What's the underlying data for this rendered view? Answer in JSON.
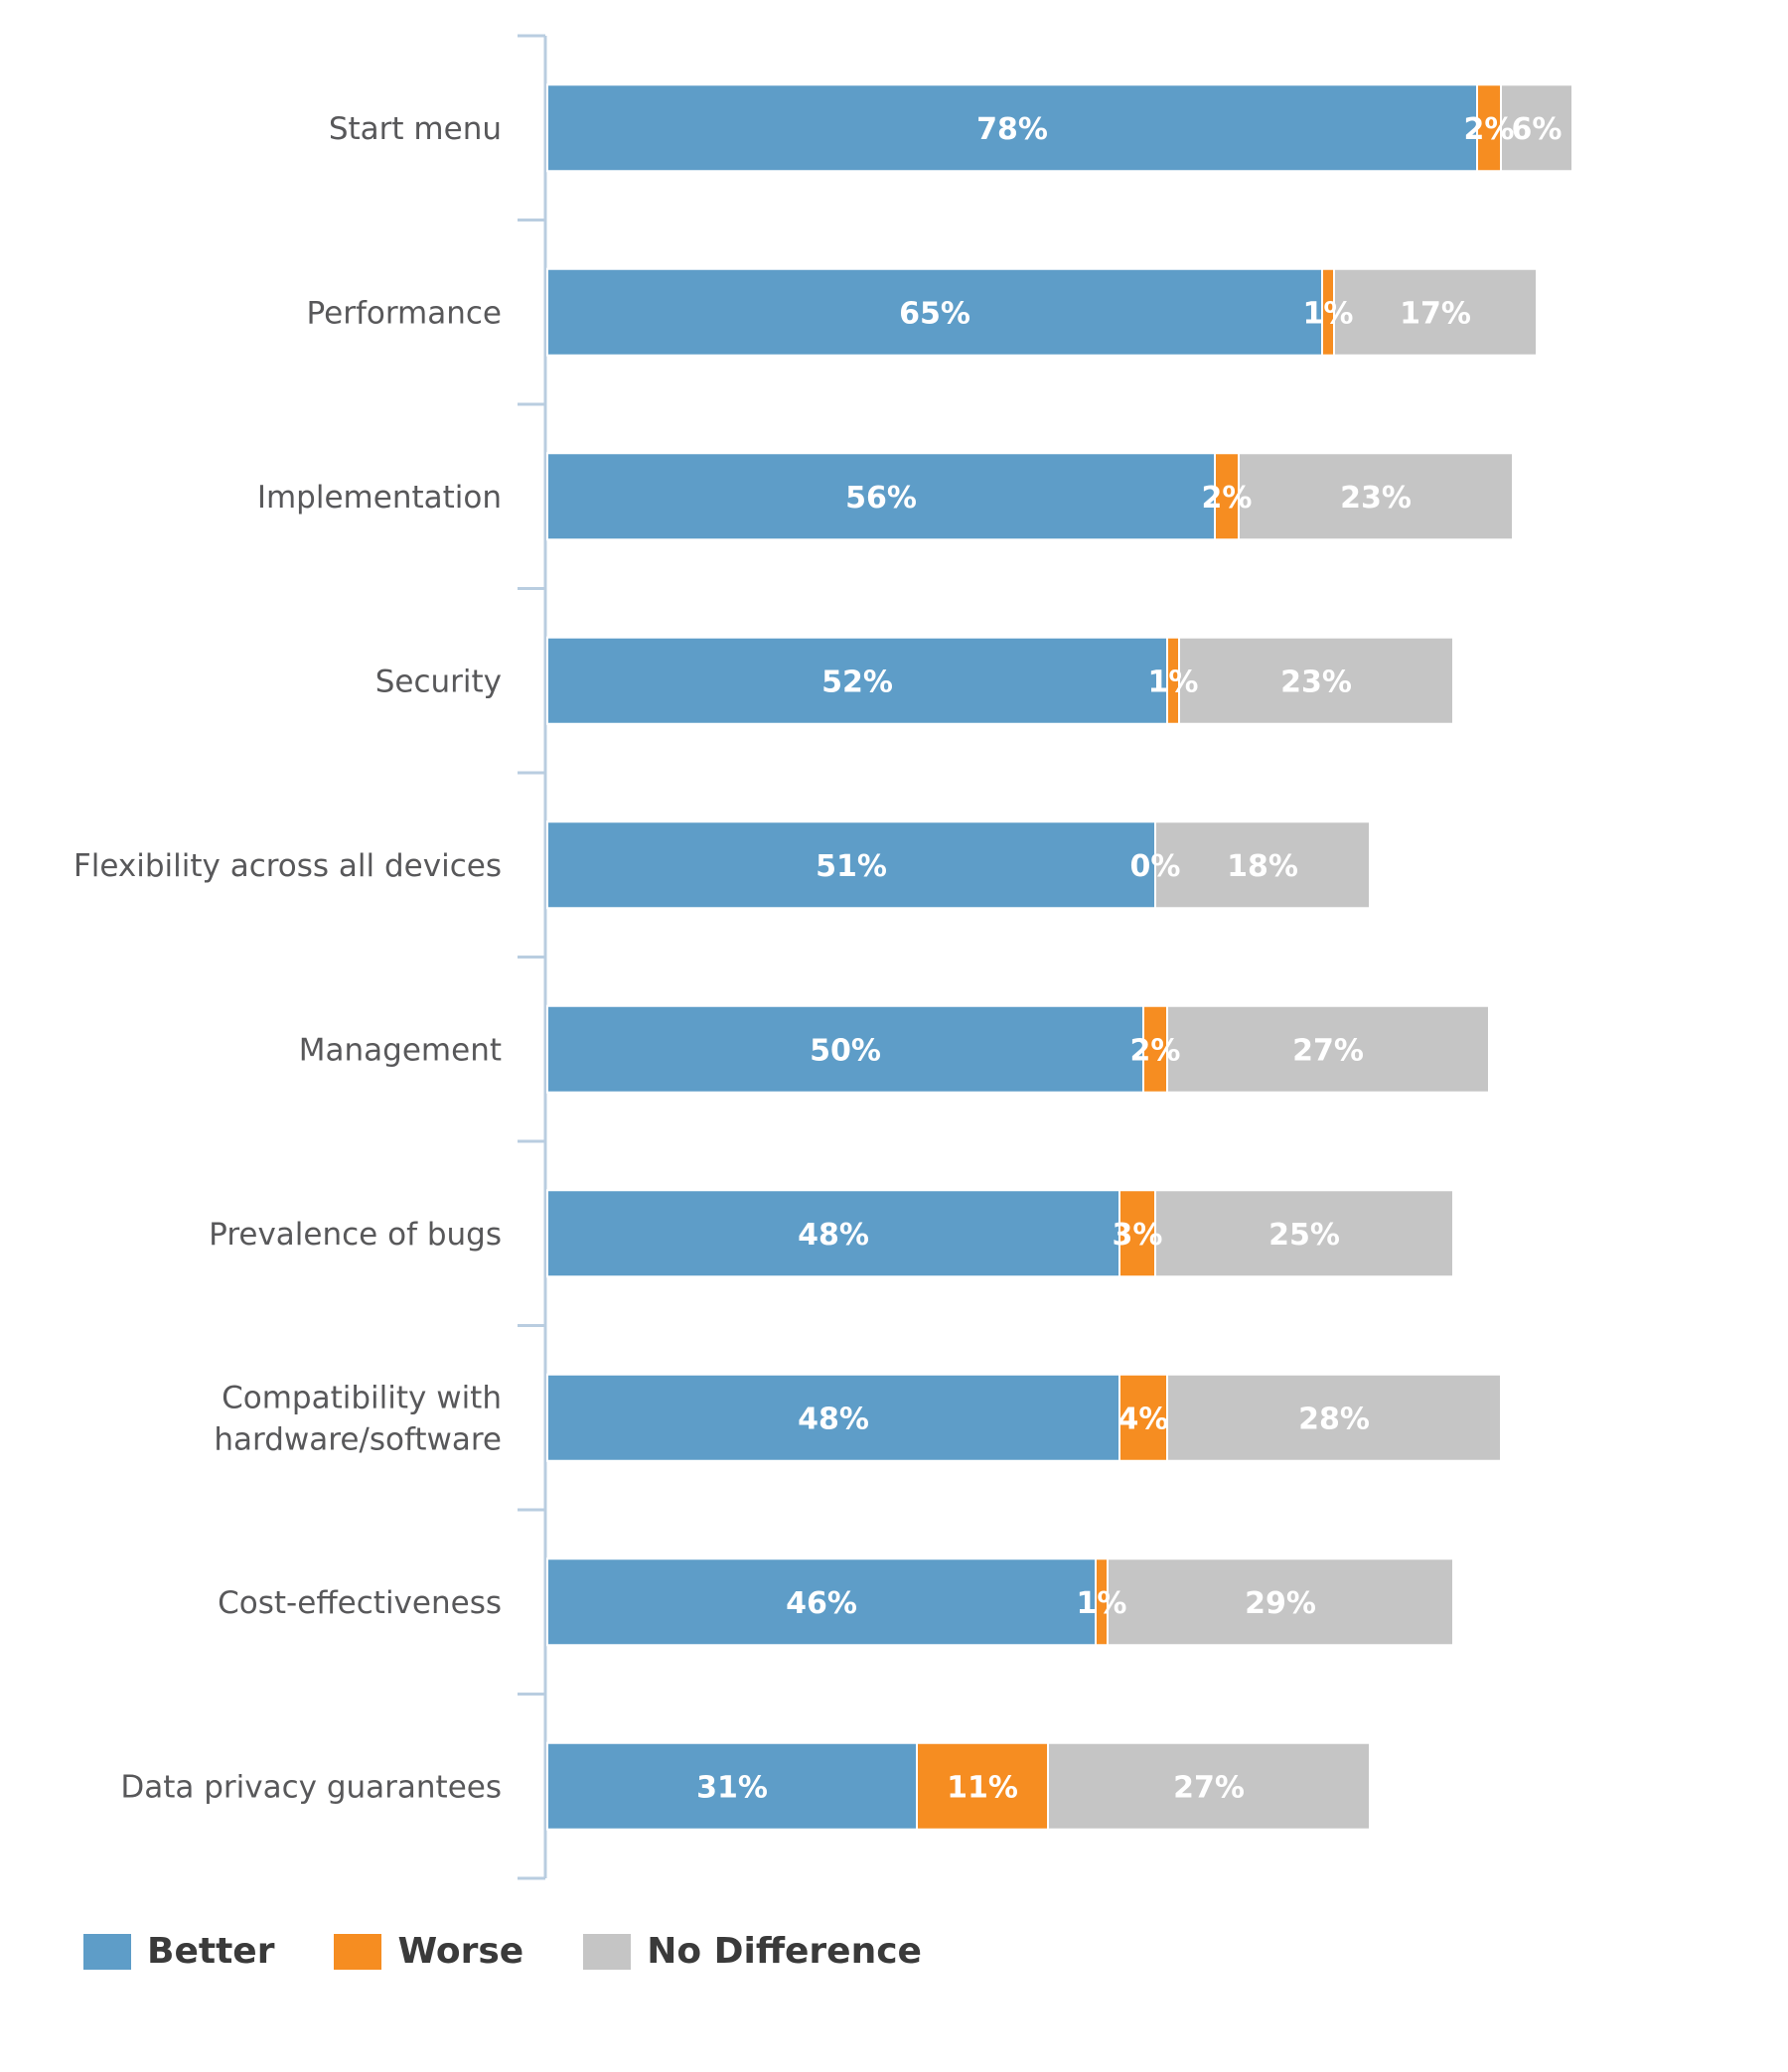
{
  "chart_data": {
    "type": "bar",
    "orientation": "horizontal",
    "stacked": true,
    "title": "",
    "xlabel": "",
    "ylabel": "",
    "xlim": [
      0,
      100
    ],
    "grid": false,
    "legend_position": "bottom-left",
    "categories": [
      "Start menu",
      "Performance",
      "Implementation",
      "Security",
      "Flexibility across all devices",
      "Management",
      "Prevalence of bugs",
      "Compatibility with hardware/software",
      "Cost-effectiveness",
      "Data privacy guarantees"
    ],
    "category_lines": [
      [
        "Start menu"
      ],
      [
        "Performance"
      ],
      [
        "Implementation"
      ],
      [
        "Security"
      ],
      [
        "Flexibility across all devices"
      ],
      [
        "Management"
      ],
      [
        "Prevalence of bugs"
      ],
      [
        "Compatibility with",
        "hardware/software"
      ],
      [
        "Cost-effectiveness"
      ],
      [
        "Data privacy guarantees"
      ]
    ],
    "series": [
      {
        "name": "Better",
        "color": "#5e9dc8",
        "values": [
          78,
          65,
          56,
          52,
          51,
          50,
          48,
          48,
          46,
          31
        ]
      },
      {
        "name": "Worse",
        "color": "#f68d21",
        "values": [
          2,
          1,
          2,
          1,
          0,
          2,
          3,
          4,
          1,
          11
        ]
      },
      {
        "name": "No Difference",
        "color": "#c5c5c5",
        "values": [
          6,
          17,
          23,
          23,
          18,
          27,
          25,
          28,
          29,
          27
        ]
      }
    ],
    "value_suffix": "%",
    "axis_color": "#b9cde0"
  }
}
